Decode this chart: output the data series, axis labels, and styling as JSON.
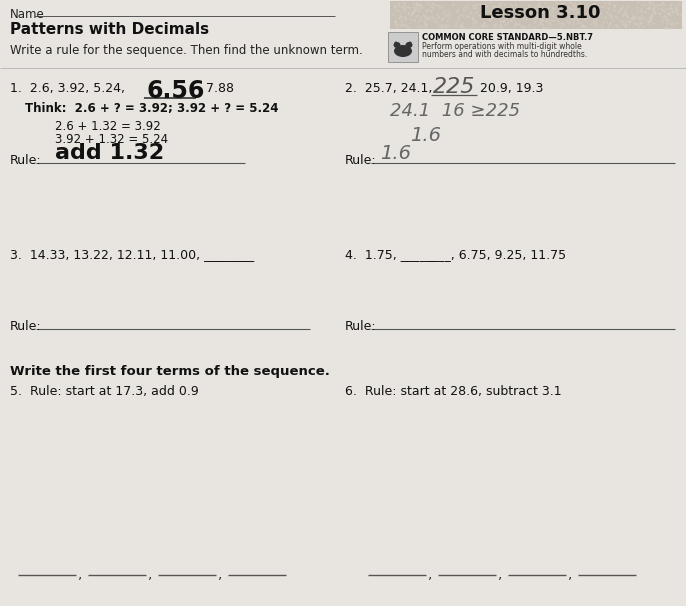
{
  "bg_color": "#e8e5e0",
  "title_lesson": "Lesson 3.10",
  "title_main": "Patterns with Decimals",
  "name_label": "Name",
  "instruction": "Write a rule for the sequence. Then find the unknown term.",
  "common_core_title": "COMMON CORE STANDARD—5.NBT.7",
  "common_core_line1": "Perform operations with multi-digit whole",
  "common_core_line2": "numbers and with decimals to hundredths.",
  "q1_prefix": "1.  2.6, 3.92, 5.24,",
  "q1_answer": "6.56",
  "q1_suffix": ", 7.88",
  "q1_think": "Think:  2.6 + ? = 3.92; 3.92 + ? = 5.24",
  "q1_calc1": "2.6 + 1.32 = 3.92",
  "q1_calc2": "3.92 + 1.32 = 5.24",
  "q1_rule_answer": "add 1.32",
  "q2_prefix": "2.  25.7, 24.1,",
  "q2_answer": "225",
  "q2_suffix": "20.9, 19.3",
  "q2_hand1": "24.1  16 ≥225",
  "q2_hand2": "1.6",
  "q2_rule_answer": "1.6",
  "q3_text": "3.  14.33, 13.22, 12.11, 11.00, ________",
  "q4_text": "4.  1.75, ________, 6.75, 9.25, 11.75",
  "rule_label": "Rule:",
  "section2_title": "Write the first four terms of the sequence.",
  "q5_text": "5.  Rule: start at 17.3, add 0.9",
  "q6_text": "6.  Rule: start at 28.6, subtract 3.1"
}
